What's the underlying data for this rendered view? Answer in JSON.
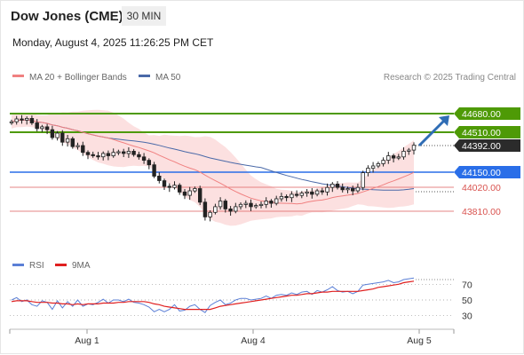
{
  "header": {
    "title": "Dow Jones (CME)",
    "timeframe": "30 MIN",
    "datetime": "Monday, August 4, 2025 11:26:25 PM CET"
  },
  "legend": {
    "ma20_label": "MA 20 + Bollinger Bands",
    "ma50_label": "MA 50",
    "credit": "Research © 2025 Trading Central"
  },
  "rsi_legend": {
    "rsi_label": "RSI",
    "ma_label": "9MA"
  },
  "chart_data": {
    "type": "candlestick",
    "x_ticks": [
      "Aug 1",
      "Aug 4",
      "Aug 5"
    ],
    "price_levels": [
      {
        "value": "44680.00",
        "type": "resistance",
        "color": "#4e9a06"
      },
      {
        "value": "44510.00",
        "type": "resistance",
        "color": "#4e9a06"
      },
      {
        "value": "44392.00",
        "type": "last_price",
        "color": "#333333"
      },
      {
        "value": "44150.00",
        "type": "pivot",
        "color": "#2a6ee8"
      },
      {
        "value": "44020.00",
        "type": "support",
        "color": "#e06666"
      },
      {
        "value": "43810.00",
        "type": "support",
        "color": "#e06666"
      }
    ],
    "forecast_arrow": {
      "from": 44392,
      "to": 44680
    },
    "candle_closes": [
      44600,
      44625,
      44615,
      44630,
      44590,
      44540,
      44555,
      44530,
      44460,
      44500,
      44420,
      44450,
      44380,
      44390,
      44330,
      44310,
      44300,
      44290,
      44320,
      44300,
      44330,
      44335,
      44320,
      44340,
      44310,
      44290,
      44260,
      44220,
      44120,
      44080,
      44030,
      44020,
      44040,
      43980,
      43950,
      43990,
      44010,
      43890,
      43760,
      43800,
      43850,
      43900,
      43830,
      43810,
      43850,
      43870,
      43880,
      43850,
      43860,
      43870,
      43900,
      43880,
      43920,
      43940,
      43930,
      43960,
      43950,
      43970,
      43980,
      43960,
      43990,
      43980,
      44020,
      44050,
      44020,
      44000,
      44010,
      43990,
      44020,
      44150,
      44190,
      44210,
      44230,
      44260,
      44300,
      44280,
      44290,
      44340,
      44350,
      44392
    ],
    "candle_opens": [
      44590,
      44600,
      44625,
      44615,
      44630,
      44590,
      44540,
      44555,
      44530,
      44460,
      44500,
      44420,
      44450,
      44380,
      44390,
      44330,
      44310,
      44300,
      44290,
      44320,
      44300,
      44330,
      44335,
      44320,
      44340,
      44310,
      44290,
      44260,
      44220,
      44120,
      44080,
      44030,
      44020,
      44040,
      43980,
      43950,
      43990,
      44010,
      43890,
      43760,
      43800,
      43850,
      43900,
      43830,
      43810,
      43850,
      43870,
      43880,
      43850,
      43860,
      43870,
      43900,
      43880,
      43920,
      43940,
      43930,
      43960,
      43950,
      43970,
      43980,
      43960,
      43990,
      43980,
      44020,
      44050,
      44020,
      44000,
      44010,
      43990,
      44020,
      44150,
      44190,
      44210,
      44230,
      44260,
      44300,
      44280,
      44290,
      44340,
      44350
    ],
    "rsi_axis_labels": [
      "70",
      "50",
      "30"
    ],
    "rsi_values": [
      50,
      53,
      48,
      50,
      44,
      42,
      49,
      47,
      38,
      49,
      40,
      48,
      42,
      50,
      42,
      45,
      44,
      47,
      51,
      46,
      50,
      50,
      48,
      51,
      47,
      46,
      44,
      41,
      35,
      38,
      35,
      38,
      44,
      36,
      37,
      42,
      44,
      38,
      34,
      43,
      47,
      50,
      44,
      46,
      50,
      52,
      52,
      50,
      51,
      52,
      55,
      52,
      56,
      57,
      56,
      59,
      57,
      60,
      61,
      57,
      62,
      60,
      63,
      67,
      62,
      60,
      61,
      58,
      61,
      69,
      70,
      71,
      72,
      73,
      75,
      72,
      73,
      76,
      77,
      78
    ],
    "rsi_ma_values": [
      48,
      49,
      49,
      49,
      48,
      47,
      47,
      47,
      46,
      46,
      45,
      45,
      44,
      45,
      44,
      45,
      45,
      45,
      46,
      46,
      46,
      47,
      47,
      48,
      48,
      48,
      48,
      47,
      45,
      44,
      42,
      41,
      40,
      39,
      38,
      38,
      38,
      38,
      38,
      38,
      40,
      42,
      43,
      44,
      45,
      46,
      47,
      48,
      49,
      50,
      51,
      52,
      53,
      54,
      55,
      56,
      56,
      57,
      58,
      58,
      59,
      60,
      60,
      61,
      61,
      61,
      61,
      61,
      61,
      62,
      63,
      64,
      66,
      67,
      68,
      69,
      70,
      72,
      73,
      74
    ]
  },
  "colors": {
    "up": "#2d2d2d",
    "down": "#2d2d2d",
    "ma20": "#f08080",
    "ma50": "#4a69a8",
    "band": "#fbd5d5",
    "rsi": "#5b7fd6",
    "rsi_ma": "#e02020",
    "arrow": "#2f6db5"
  }
}
